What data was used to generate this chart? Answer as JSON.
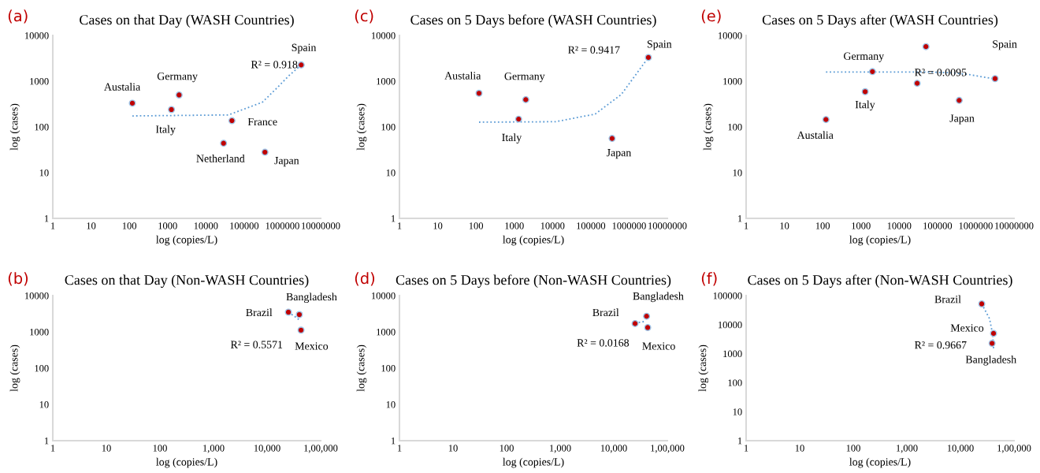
{
  "chart_data": [
    {
      "type": "scatter",
      "title": "Cases on that Day (WASH Countries)",
      "xlabel": "log (copies/L)",
      "ylabel": "log (cases)",
      "log": "xy",
      "xlim": [
        1,
        10000000
      ],
      "xticks": [
        1,
        10,
        100,
        1000,
        10000,
        100000,
        1000000,
        10000000
      ],
      "ylim": [
        1,
        10000
      ],
      "yticks": [
        1,
        10,
        100,
        1000,
        10000
      ],
      "series": [
        {
          "marker": "circle",
          "color": "#c00000",
          "x": [
            120,
            2000,
            1260,
            48000,
            29000,
            350000,
            3100000
          ],
          "values": [
            330,
            500,
            240,
            137,
            44,
            28,
            2270
          ]
        },
        {
          "type": "line",
          "color": "#5b9bd5",
          "line_style": "dotted",
          "x": [
            120,
            39000,
            300000,
            780000,
            1450000,
            3100000
          ],
          "values": [
            174,
            183,
            347,
            760,
            1300,
            2270
          ]
        }
      ],
      "annotations": [
        "(a)",
        "Austalia",
        "Germany",
        "Italy",
        "France",
        "Netherland",
        "Japan",
        "Spain",
        "R² = 0.918"
      ]
    },
    {
      "type": "scatter",
      "title": "Cases on 5 Days before (WASH Countries)",
      "xlabel": "log (copies/L)",
      "ylabel": "log (cases)",
      "log": "xy",
      "xlim": [
        1,
        10000000
      ],
      "xticks": [
        1,
        10,
        100,
        1000,
        10000,
        100000,
        1000000,
        10000000
      ],
      "ylim": [
        1,
        10000
      ],
      "yticks": [
        1,
        10,
        100,
        1000,
        10000
      ],
      "series": [
        {
          "marker": "circle",
          "color": "#c00000",
          "x": [
            120,
            2000,
            1300,
            360000,
            3200000
          ],
          "values": [
            545,
            395,
            148,
            56,
            3300
          ]
        },
        {
          "type": "line",
          "color": "#5b9bd5",
          "line_style": "dotted",
          "x": [
            120,
            12000,
            130000,
            630000,
            1600000,
            3200000
          ],
          "values": [
            127,
            130,
            191,
            515,
            1500,
            3300
          ]
        }
      ],
      "annotations": [
        "(c)",
        "Austalia",
        "Germany",
        "Italy",
        "Japan",
        "Spain",
        "R² = 0.9417"
      ]
    },
    {
      "type": "scatter",
      "title": "Cases on 5 Days after (WASH Countries)",
      "xlabel": "log (copies/L)",
      "ylabel": "log (cases)",
      "log": "xy",
      "xlim": [
        1,
        10000000
      ],
      "xticks": [
        1,
        10,
        100,
        1000,
        10000,
        100000,
        1000000,
        10000000
      ],
      "ylim": [
        1,
        10000
      ],
      "yticks": [
        1,
        10,
        100,
        1000,
        10000
      ],
      "series": [
        {
          "marker": "circle",
          "color": "#c00000",
          "x": [
            122,
            1290,
            2000,
            29500,
            50000,
            370000,
            3200000
          ],
          "values": [
            145,
            590,
            1620,
            900,
            5700,
            380,
            1140
          ]
        },
        {
          "type": "line",
          "color": "#5b9bd5",
          "line_style": "dotted",
          "x": [
            122,
            55000,
            265000,
            680000,
            3200000
          ],
          "values": [
            1590,
            1590,
            1520,
            1390,
            1120
          ]
        }
      ],
      "annotations": [
        "(e)",
        "Germany",
        "Italy",
        "Austalia",
        "Japan",
        "Spain",
        "R² = 0.0095"
      ]
    },
    {
      "type": "scatter",
      "title": "Cases on that Day (Non-WASH Countries)",
      "xlabel": "log (copies/L)",
      "ylabel": "log (cases)",
      "log": "xy",
      "xlim": [
        1,
        100000
      ],
      "xticks": [
        1,
        10,
        100,
        {
          "value": 1000,
          "label": "1,000"
        },
        {
          "value": 10000,
          "label": "10,000"
        },
        {
          "value": 100000,
          "label": "1,00,000"
        }
      ],
      "ylim": [
        1,
        10000
      ],
      "yticks": [
        1,
        10,
        100,
        1000,
        10000
      ],
      "series": [
        {
          "marker": "circle",
          "color": "#c00000",
          "x": [
            25000,
            40000,
            43000
          ],
          "values": [
            3500,
            3000,
            1120
          ]
        },
        {
          "type": "line",
          "color": "#5b9bd5",
          "line_style": "dotted",
          "x": [
            25000,
            32500,
            42000
          ],
          "values": [
            3500,
            2700,
            2000
          ]
        }
      ],
      "annotations": [
        "(b)",
        "Bangladesh",
        "Brazil",
        "Mexico",
        "R² = 0.5571"
      ]
    },
    {
      "type": "scatter",
      "title": "Cases on 5 Days before (Non-WASH Countries)",
      "xlabel": "log (copies/L)",
      "ylabel": "log (cases)",
      "log": "xy",
      "xlim": [
        1,
        100000
      ],
      "xticks": [
        1,
        10,
        100,
        {
          "value": 1000,
          "label": "1,000"
        },
        {
          "value": 10000,
          "label": "10,000"
        },
        {
          "value": 100000,
          "label": "1,00,000"
        }
      ],
      "ylim": [
        1,
        10000
      ],
      "yticks": [
        1,
        10,
        100,
        1000,
        10000
      ],
      "series": [
        {
          "marker": "circle",
          "color": "#c00000",
          "x": [
            25000,
            41000,
            43000
          ],
          "values": [
            1700,
            2700,
            1320
          ]
        },
        {
          "type": "line",
          "color": "#5b9bd5",
          "line_style": "dotted",
          "x": [
            25000,
            32000,
            40000
          ],
          "values": [
            1700,
            1870,
            1950
          ]
        }
      ],
      "annotations": [
        "(d)",
        "Bangladesh",
        "Brazil",
        "Mexico",
        "R² = 0.0168"
      ]
    },
    {
      "type": "scatter",
      "title": "Cases on 5 Days after (Non-WASH Countries)",
      "xlabel": "log (copies/L)",
      "ylabel": "log (cases)",
      "log": "xy",
      "xlim": [
        1,
        100000
      ],
      "xticks": [
        1,
        10,
        100,
        {
          "value": 1000,
          "label": "1,000"
        },
        {
          "value": 10000,
          "label": "10,000"
        },
        {
          "value": 100000,
          "label": "1,00,000"
        }
      ],
      "ylim": [
        1,
        100000
      ],
      "yticks": [
        1,
        10,
        100,
        1000,
        10000,
        100000
      ],
      "series": [
        {
          "marker": "circle",
          "color": "#c00000",
          "x": [
            25000,
            41500,
            39000
          ],
          "values": [
            52000,
            5000,
            2270
          ]
        },
        {
          "type": "line",
          "color": "#5b9bd5",
          "line_style": "dotted",
          "x": [
            25000,
            35000,
            40000,
            41500
          ],
          "values": [
            52000,
            16000,
            4550,
            1540
          ]
        }
      ],
      "annotations": [
        "(f)",
        "Brazil",
        "Mexico",
        "R² = 0.9667",
        "Bangladesh"
      ]
    }
  ]
}
